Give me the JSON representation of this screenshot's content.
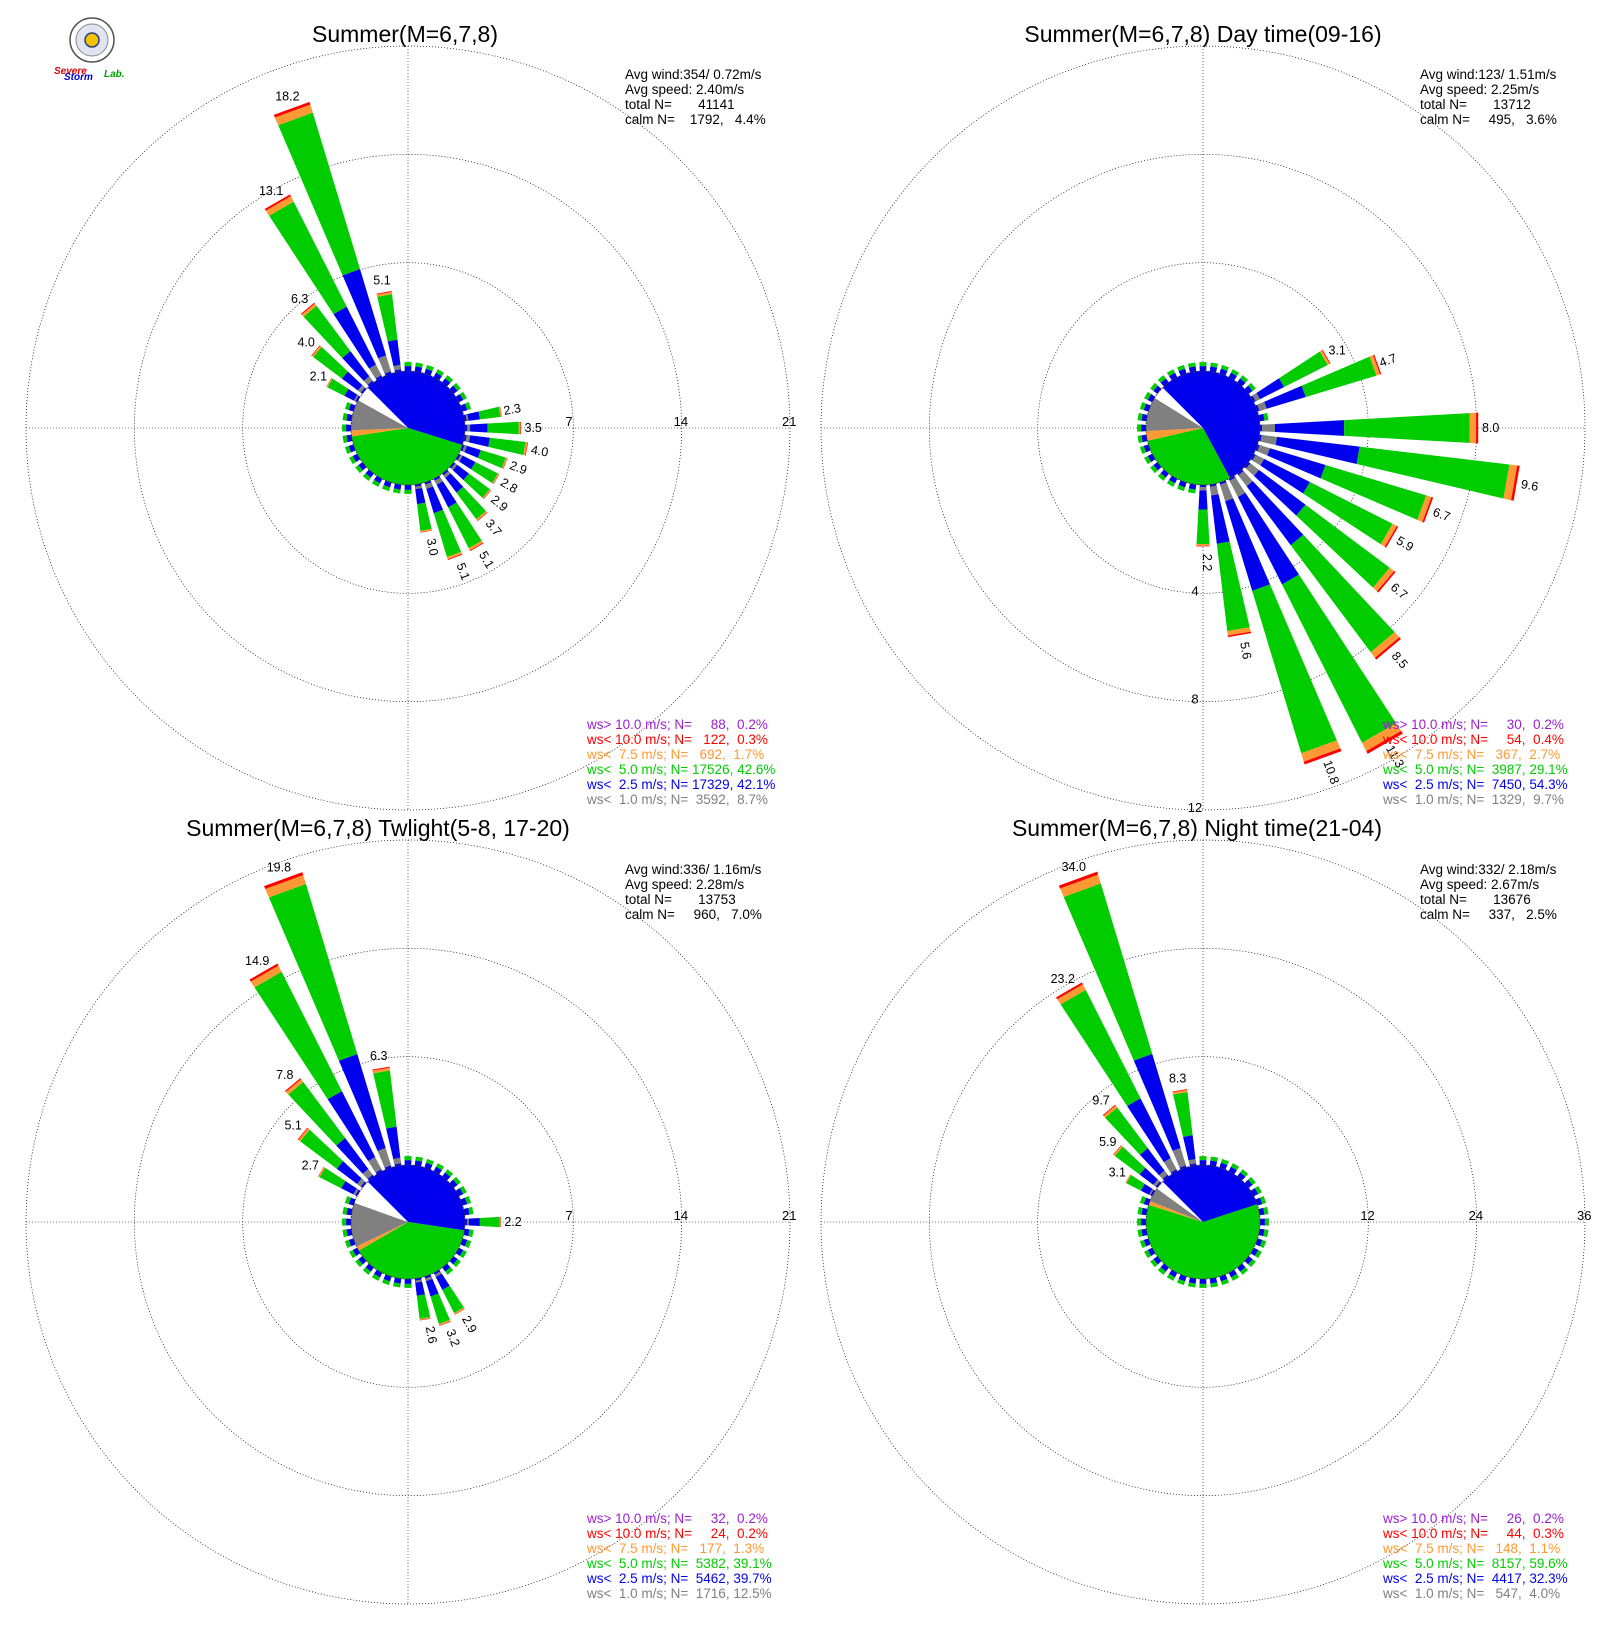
{
  "logo": {
    "word1": "Severe",
    "word2": "Storm",
    "word3": "Lab."
  },
  "colors": {
    "ws_gt_10": "#9b1fcf",
    "ws_lt_10": "#ff0000",
    "ws_lt_75": "#ff9933",
    "ws_lt_5": "#00cc00",
    "ws_lt_25": "#0000ee",
    "ws_lt_1": "#808080",
    "grid": "#000000"
  },
  "chart_data": [
    {
      "type": "wind-rose",
      "title": "Summer(M=6,7,8)",
      "stats": [
        "Avg wind:354/ 0.72m/s",
        "Avg speed: 2.40m/s",
        "total N=       41141",
        "calm N=    1792,   4.4%"
      ],
      "rings": [
        7,
        14,
        21
      ],
      "ring_labels": [
        "7",
        "14",
        "21"
      ],
      "ring_label_axis": "east",
      "petals": [
        {
          "dir": 340,
          "value": 18.2,
          "label": "18.2"
        },
        {
          "dir": 330,
          "value": 13.1,
          "label": "13.1"
        },
        {
          "dir": 350,
          "value": 5.1,
          "label": "5.1"
        },
        {
          "dir": 320,
          "value": 6.3,
          "label": "6.3"
        },
        {
          "dir": 310,
          "value": 4.0,
          "label": "4.0"
        },
        {
          "dir": 300,
          "value": 2.1,
          "label": "2.1"
        },
        {
          "dir": 80,
          "value": 2.3,
          "label": "2.3"
        },
        {
          "dir": 90,
          "value": 3.5,
          "label": "3.5"
        },
        {
          "dir": 100,
          "value": 4.0,
          "label": "4.0"
        },
        {
          "dir": 110,
          "value": 2.9,
          "label": "2.9"
        },
        {
          "dir": 120,
          "value": 2.8,
          "label": "2.8"
        },
        {
          "dir": 130,
          "value": 2.9,
          "label": "2.9"
        },
        {
          "dir": 140,
          "value": 3.7,
          "label": "3.7"
        },
        {
          "dir": 150,
          "value": 5.1,
          "label": "5.1"
        },
        {
          "dir": 160,
          "value": 5.1,
          "label": "5.1"
        },
        {
          "dir": 170,
          "value": 3.0,
          "label": "3.0"
        }
      ],
      "pie": [
        {
          "band": "ws_lt_25",
          "pct": 42.1
        },
        {
          "band": "ws_lt_5",
          "pct": 42.6
        },
        {
          "band": "ws_lt_75",
          "pct": 1.7
        },
        {
          "band": "ws_lt_1",
          "pct": 8.7
        },
        {
          "band": "calm",
          "pct": 4.4
        }
      ],
      "legend": [
        {
          "band": "ws_gt_10",
          "text": "ws> 10.0 m/s; N=     88,  0.2%"
        },
        {
          "band": "ws_lt_10",
          "text": "ws< 10.0 m/s; N=   122,  0.3%"
        },
        {
          "band": "ws_lt_75",
          "text": "ws<  7.5 m/s; N=   692,  1.7%"
        },
        {
          "band": "ws_lt_5",
          "text": "ws<  5.0 m/s; N= 17526, 42.6%"
        },
        {
          "band": "ws_lt_25",
          "text": "ws<  2.5 m/s; N= 17329, 42.1%"
        },
        {
          "band": "ws_lt_1",
          "text": "ws<  1.0 m/s; N=  3592,  8.7%"
        }
      ]
    },
    {
      "type": "wind-rose",
      "title": "Summer(M=6,7,8) Day time(09-16)",
      "stats": [
        "Avg wind:123/ 1.51m/s",
        "Avg speed: 2.25m/s",
        "total N=       13712",
        "calm N=     495,   3.6%"
      ],
      "rings": [
        4,
        8,
        12
      ],
      "ring_labels": [
        "4",
        "8",
        "12"
      ],
      "ring_label_axis": "south",
      "petals": [
        {
          "dir": 60,
          "value": 3.1,
          "label": "3.1"
        },
        {
          "dir": 70,
          "value": 4.7,
          "label": "4.7"
        },
        {
          "dir": 90,
          "value": 8.0,
          "label": "8.0"
        },
        {
          "dir": 100,
          "value": 9.6,
          "label": "9.6"
        },
        {
          "dir": 110,
          "value": 6.7,
          "label": "6.7"
        },
        {
          "dir": 120,
          "value": 5.9,
          "label": "5.9"
        },
        {
          "dir": 130,
          "value": 6.7,
          "label": "6.7"
        },
        {
          "dir": 140,
          "value": 8.5,
          "label": "8.5"
        },
        {
          "dir": 150,
          "value": 11.3,
          "label": "11.3"
        },
        {
          "dir": 160,
          "value": 10.8,
          "label": "10.8"
        },
        {
          "dir": 170,
          "value": 5.6,
          "label": "5.6"
        },
        {
          "dir": 180,
          "value": 2.2,
          "label": "2.2"
        }
      ],
      "pie": [
        {
          "band": "ws_lt_25",
          "pct": 54.3
        },
        {
          "band": "ws_lt_5",
          "pct": 29.1
        },
        {
          "band": "ws_lt_75",
          "pct": 2.7
        },
        {
          "band": "ws_lt_1",
          "pct": 9.7
        },
        {
          "band": "calm",
          "pct": 3.6
        }
      ],
      "legend": [
        {
          "band": "ws_gt_10",
          "text": "ws> 10.0 m/s; N=     30,  0.2%"
        },
        {
          "band": "ws_lt_10",
          "text": "ws< 10.0 m/s; N=     54,  0.4%"
        },
        {
          "band": "ws_lt_75",
          "text": "ws<  7.5 m/s; N=   367,  2.7%"
        },
        {
          "band": "ws_lt_5",
          "text": "ws<  5.0 m/s; N=  3987, 29.1%"
        },
        {
          "band": "ws_lt_25",
          "text": "ws<  2.5 m/s; N=  7450, 54.3%"
        },
        {
          "band": "ws_lt_1",
          "text": "ws<  1.0 m/s; N=  1329,  9.7%"
        }
      ]
    },
    {
      "type": "wind-rose",
      "title": "Summer(M=6,7,8) Twlight(5-8, 17-20)",
      "stats": [
        "Avg wind:336/ 1.16m/s",
        "Avg speed: 2.28m/s",
        "total N=       13753",
        "calm N=     960,   7.0%"
      ],
      "rings": [
        7,
        14,
        21
      ],
      "ring_labels": [
        "7",
        "14",
        "21"
      ],
      "ring_label_axis": "east",
      "petals": [
        {
          "dir": 340,
          "value": 19.8,
          "label": "19.8"
        },
        {
          "dir": 330,
          "value": 14.9,
          "label": "14.9"
        },
        {
          "dir": 350,
          "value": 6.3,
          "label": "6.3"
        },
        {
          "dir": 320,
          "value": 7.8,
          "label": "7.8"
        },
        {
          "dir": 310,
          "value": 5.1,
          "label": "5.1"
        },
        {
          "dir": 300,
          "value": 2.7,
          "label": "2.7"
        },
        {
          "dir": 90,
          "value": 2.2,
          "label": "2.2"
        },
        {
          "dir": 150,
          "value": 2.9,
          "label": "2.9"
        },
        {
          "dir": 160,
          "value": 3.2,
          "label": "3.2"
        },
        {
          "dir": 170,
          "value": 2.6,
          "label": "2.6"
        }
      ],
      "pie": [
        {
          "band": "ws_lt_25",
          "pct": 39.7
        },
        {
          "band": "ws_lt_5",
          "pct": 39.1
        },
        {
          "band": "ws_lt_75",
          "pct": 1.3
        },
        {
          "band": "ws_lt_1",
          "pct": 12.5
        },
        {
          "band": "calm",
          "pct": 7.0
        }
      ],
      "legend": [
        {
          "band": "ws_gt_10",
          "text": "ws> 10.0 m/s; N=     32,  0.2%"
        },
        {
          "band": "ws_lt_10",
          "text": "ws< 10.0 m/s; N=     24,  0.2%"
        },
        {
          "band": "ws_lt_75",
          "text": "ws<  7.5 m/s; N=   177,  1.3%"
        },
        {
          "band": "ws_lt_5",
          "text": "ws<  5.0 m/s; N=  5382, 39.1%"
        },
        {
          "band": "ws_lt_25",
          "text": "ws<  2.5 m/s; N=  5462, 39.7%"
        },
        {
          "band": "ws_lt_1",
          "text": "ws<  1.0 m/s; N=  1716, 12.5%"
        }
      ]
    },
    {
      "type": "wind-rose",
      "title": "Summer(M=6,7,8) Night time(21-04)",
      "stats": [
        "Avg wind:332/ 2.18m/s",
        "Avg speed: 2.67m/s",
        "total N=       13676",
        "calm N=     337,   2.5%"
      ],
      "rings": [
        12,
        24,
        36
      ],
      "ring_labels": [
        "12",
        "24",
        "36"
      ],
      "ring_label_axis": "east",
      "petals": [
        {
          "dir": 340,
          "value": 34.0,
          "label": "34.0"
        },
        {
          "dir": 330,
          "value": 23.2,
          "label": "23.2"
        },
        {
          "dir": 350,
          "value": 8.3,
          "label": "8.3"
        },
        {
          "dir": 320,
          "value": 9.7,
          "label": "9.7"
        },
        {
          "dir": 310,
          "value": 5.9,
          "label": "5.9"
        },
        {
          "dir": 300,
          "value": 3.1,
          "label": "3.1"
        }
      ],
      "pie": [
        {
          "band": "ws_lt_25",
          "pct": 32.3
        },
        {
          "band": "ws_lt_5",
          "pct": 59.6
        },
        {
          "band": "ws_lt_75",
          "pct": 1.1
        },
        {
          "band": "ws_lt_1",
          "pct": 4.0
        },
        {
          "band": "calm",
          "pct": 2.5
        }
      ],
      "legend": [
        {
          "band": "ws_gt_10",
          "text": "ws> 10.0 m/s; N=     26,  0.2%"
        },
        {
          "band": "ws_lt_10",
          "text": "ws< 10.0 m/s; N=     44,  0.3%"
        },
        {
          "band": "ws_lt_75",
          "text": "ws<  7.5 m/s; N=   148,  1.1%"
        },
        {
          "band": "ws_lt_5",
          "text": "ws<  5.0 m/s; N=  8157, 59.6%"
        },
        {
          "band": "ws_lt_25",
          "text": "ws<  2.5 m/s; N=  4417, 32.3%"
        },
        {
          "band": "ws_lt_1",
          "text": "ws<  1.0 m/s; N=   547,  4.0%"
        }
      ]
    }
  ]
}
